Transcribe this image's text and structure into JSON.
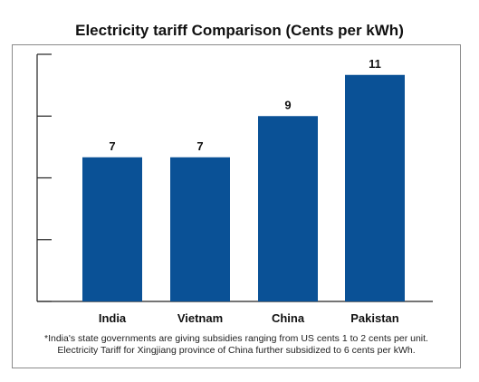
{
  "chart_data": {
    "type": "bar",
    "title": "Electricity tariff Comparison (Cents per kWh)",
    "categories": [
      "India",
      "Vietnam",
      "China",
      "Pakistan"
    ],
    "values": [
      7,
      7,
      9,
      11
    ],
    "data_labels": [
      "7",
      "7",
      "9",
      "11"
    ],
    "ylim": [
      0,
      12
    ],
    "grid": false,
    "bar_color": "#0a5196"
  },
  "footnote": {
    "line1": "*India's state governments are giving subsidies ranging from US cents 1 to 2 cents per unit.",
    "line2": "Electricity Tariff for Xingjiang province of China further subsidized to 6 cents per kWh."
  }
}
